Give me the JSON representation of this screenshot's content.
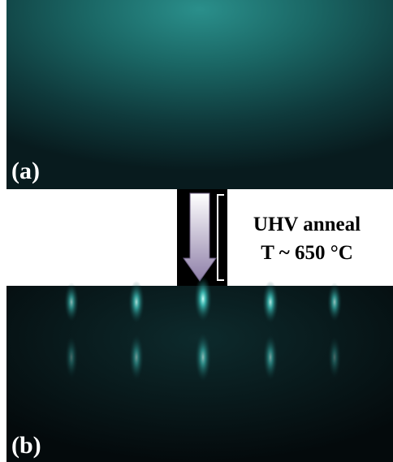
{
  "panels": {
    "a": {
      "label": "(a)"
    },
    "b": {
      "label": "(b)"
    }
  },
  "annotation": {
    "line1": "UHV anneal",
    "line2": "T ~ 650 °C"
  }
}
